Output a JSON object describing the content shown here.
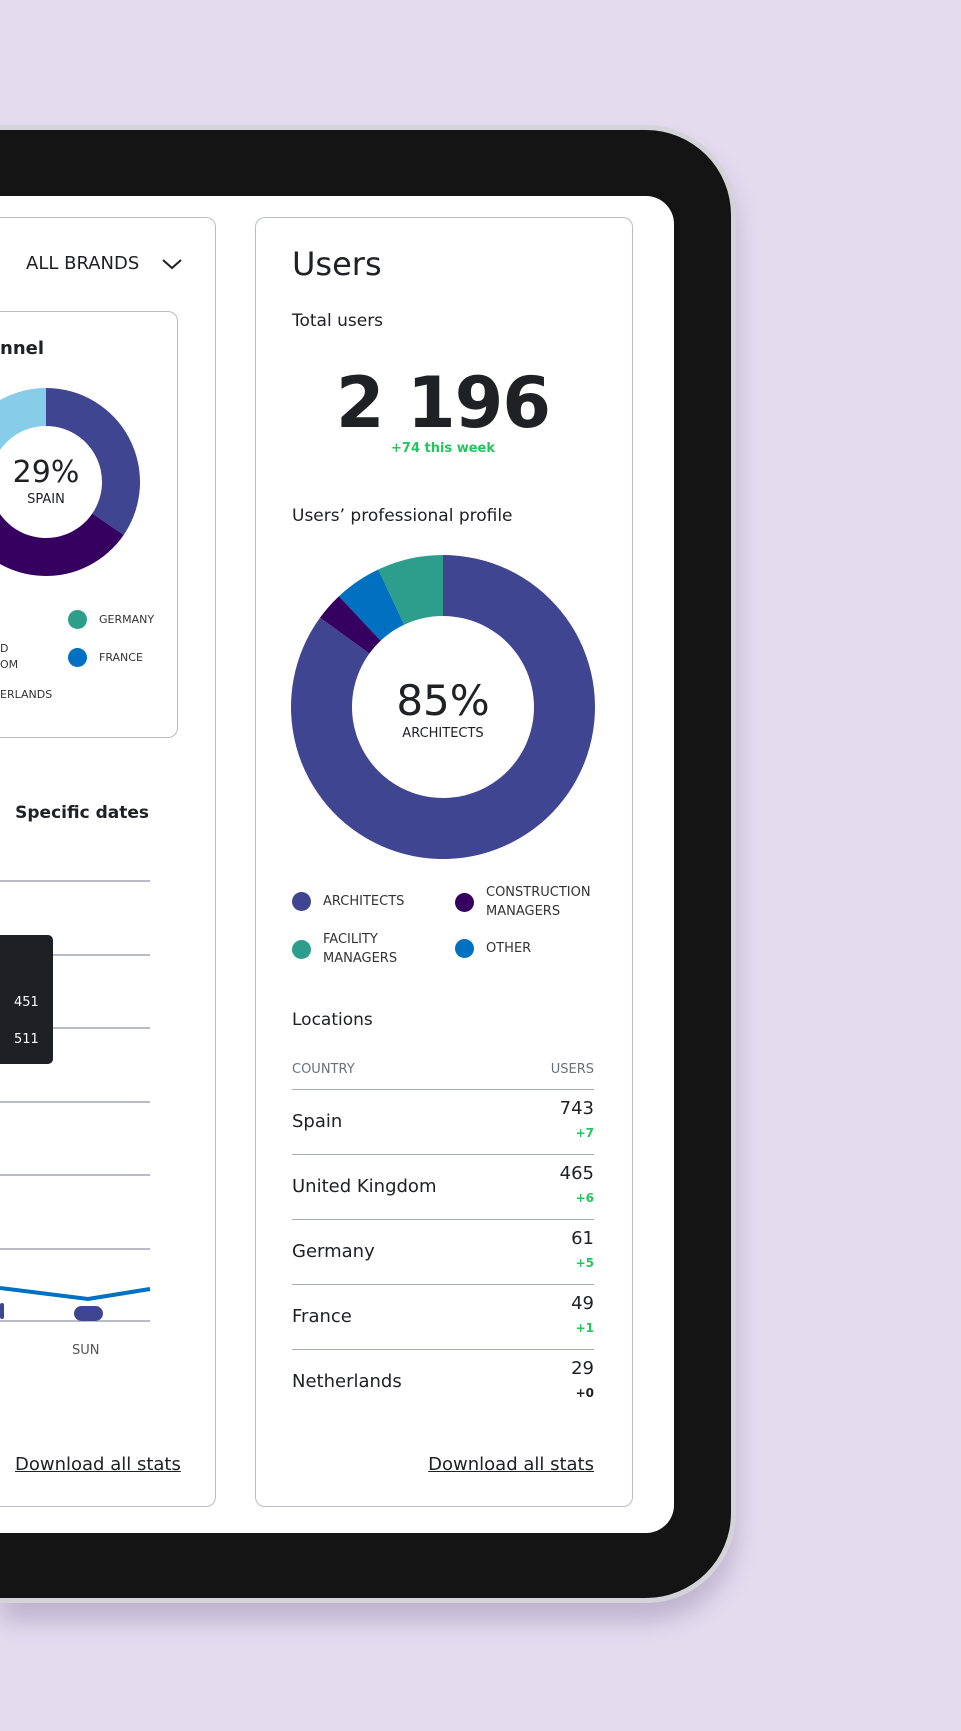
{
  "left_panel": {
    "brand_select": "ALL BRANDS",
    "channel_card": {
      "title_fragment": "nnel",
      "center_value": "29%",
      "center_label": "SPAIN",
      "legend": [
        {
          "label": "UNITED KINGDOM",
          "fragment_1": "D",
          "fragment_2": "OM"
        },
        {
          "label": "NETHERLANDS",
          "fragment": "ERLANDS"
        },
        {
          "label": "GERMANY",
          "color": "#2e9e8c"
        },
        {
          "label": "FRANCE",
          "color": "#0070c0"
        }
      ]
    },
    "dates_title": "Specific dates",
    "tooltip": {
      "value_1": "451",
      "value_2": "511"
    },
    "x_label": "SUN",
    "download": "Download all stats"
  },
  "users": {
    "title": "Users",
    "total_label": "Total users",
    "total_value": "2 196",
    "weekly_change": "+74 this week",
    "profile_title": "Users’ professional profile",
    "center_value": "85%",
    "center_label": "ARCHITECTS",
    "legend": [
      {
        "label": "ARCHITECTS",
        "color": "#3f4590"
      },
      {
        "label": "CONSTRUCTION MANAGERS",
        "color": "#35005f"
      },
      {
        "label": "FACILITY MANAGERS",
        "color": "#2e9e8c"
      },
      {
        "label": "OTHER",
        "color": "#0070c0"
      }
    ],
    "locations_title": "Locations",
    "col_country": "COUNTRY",
    "col_users": "USERS",
    "rows": [
      {
        "country": "Spain",
        "users": "743",
        "change": "+7"
      },
      {
        "country": "United Kingdom",
        "users": "465",
        "change": "+6"
      },
      {
        "country": "Germany",
        "users": "61",
        "change": "+5"
      },
      {
        "country": "France",
        "users": "49",
        "change": "+1"
      },
      {
        "country": "Netherlands",
        "users": "29",
        "change": "+0"
      }
    ],
    "download": "Download all stats"
  },
  "chart_data": [
    {
      "type": "pie",
      "title": "Users’ professional profile",
      "categories": [
        "Architects",
        "Construction managers",
        "Other",
        "Facility managers"
      ],
      "values": [
        85,
        3,
        5,
        7
      ],
      "colors": [
        "#3f4590",
        "#35005f",
        "#0070c0",
        "#2e9e8c"
      ]
    },
    {
      "type": "pie",
      "title": "channel",
      "categories": [
        "Spain",
        "United Kingdom",
        "France",
        "Germany",
        "Netherlands"
      ],
      "values": [
        29,
        27,
        9,
        2,
        17
      ],
      "colors": [
        "#3f4590",
        "#35005f",
        "#0070c0",
        "#2e9e8c",
        "#87cde9"
      ],
      "note": "partially visible"
    }
  ]
}
